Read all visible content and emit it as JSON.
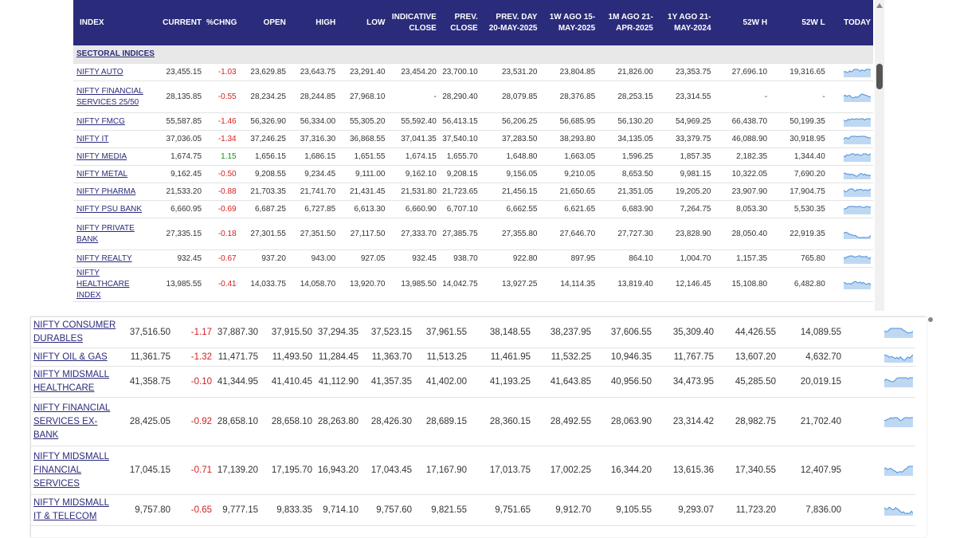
{
  "top": {
    "headers": [
      "INDEX",
      "CURRENT",
      "%CHNG",
      "OPEN",
      "HIGH",
      "LOW",
      "INDICATIVE CLOSE",
      "PREV. CLOSE",
      "PREV. DAY 20-MAY-2025",
      "1W AGO 15-MAY-2025",
      "1M AGO 21-APR-2025",
      "1Y AGO 21-MAY-2024",
      "52W H",
      "52W L",
      "TODAY"
    ],
    "section": "SECTORAL INDICES",
    "rows": [
      {
        "name": "NIFTY AUTO",
        "v": [
          "23,455.15",
          "-1.03",
          "23,629.85",
          "23,643.75",
          "23,291.40",
          "23,454.20",
          "23,700.10",
          "23,531.20",
          "23,804.85",
          "21,826.00",
          "23,353.75",
          "27,696.10",
          "19,316.65"
        ],
        "dir": "neg"
      },
      {
        "name": "NIFTY FINANCIAL SERVICES 25/50",
        "v": [
          "28,135.85",
          "-0.55",
          "28,234.25",
          "28,244.85",
          "27,968.10",
          "-",
          "28,290.40",
          "28,079.85",
          "28,376.85",
          "28,253.15",
          "23,314.55",
          "-",
          "-"
        ],
        "dir": "neg"
      },
      {
        "name": "NIFTY FMCG",
        "v": [
          "55,587.85",
          "-1.46",
          "56,326.90",
          "56,334.00",
          "55,305.20",
          "55,592.40",
          "56,413.15",
          "56,206.25",
          "56,685.95",
          "56,130.20",
          "54,969.25",
          "66,438.70",
          "50,199.35"
        ],
        "dir": "neg"
      },
      {
        "name": "NIFTY IT",
        "v": [
          "37,036.05",
          "-1.34",
          "37,246.25",
          "37,316.30",
          "36,868.55",
          "37,041.35",
          "37,540.10",
          "37,283.50",
          "38,293.80",
          "34,135.05",
          "33,379.75",
          "46,088.90",
          "30,918.95"
        ],
        "dir": "neg"
      },
      {
        "name": "NIFTY MEDIA",
        "v": [
          "1,674.75",
          "1.15",
          "1,656.15",
          "1,686.15",
          "1,651.55",
          "1,674.15",
          "1,655.70",
          "1,648.80",
          "1,663.05",
          "1,596.25",
          "1,857.35",
          "2,182.35",
          "1,344.40"
        ],
        "dir": "pos"
      },
      {
        "name": "NIFTY METAL",
        "v": [
          "9,162.45",
          "-0.50",
          "9,208.55",
          "9,234.45",
          "9,111.00",
          "9,162.10",
          "9,208.15",
          "9,156.05",
          "9,210.05",
          "8,653.50",
          "9,981.15",
          "10,322.05",
          "7,690.20"
        ],
        "dir": "neg"
      },
      {
        "name": "NIFTY PHARMA",
        "v": [
          "21,533.20",
          "-0.88",
          "21,703.35",
          "21,741.70",
          "21,431.45",
          "21,531.80",
          "21,723.65",
          "21,456.15",
          "21,650.65",
          "21,351.05",
          "19,205.20",
          "23,907.90",
          "17,904.75"
        ],
        "dir": "neg"
      },
      {
        "name": "NIFTY PSU BANK",
        "v": [
          "6,660.95",
          "-0.69",
          "6,687.25",
          "6,727.85",
          "6,613.30",
          "6,660.90",
          "6,707.10",
          "6,662.55",
          "6,621.65",
          "6,683.90",
          "7,264.75",
          "8,053.30",
          "5,530.35"
        ],
        "dir": "neg"
      },
      {
        "name": "NIFTY PRIVATE BANK",
        "v": [
          "27,335.15",
          "-0.18",
          "27,301.55",
          "27,351.50",
          "27,117.50",
          "27,333.70",
          "27,385.75",
          "27,355.80",
          "27,646.70",
          "27,727.30",
          "23,828.90",
          "28,050.40",
          "22,919.35"
        ],
        "dir": "neg"
      },
      {
        "name": "NIFTY REALTY",
        "v": [
          "932.45",
          "-0.67",
          "937.20",
          "943.00",
          "927.05",
          "932.45",
          "938.70",
          "922.80",
          "897.95",
          "864.10",
          "1,004.70",
          "1,157.35",
          "765.80"
        ],
        "dir": "neg"
      },
      {
        "name": "NIFTY HEALTHCARE INDEX",
        "v": [
          "13,985.55",
          "-0.41",
          "14,033.75",
          "14,058.70",
          "13,920.70",
          "13,985.50",
          "14,042.75",
          "13,927.25",
          "14,114.35",
          "13,819.40",
          "12,146.45",
          "15,108.80",
          "6,482.80"
        ],
        "dir": "neg"
      }
    ]
  },
  "bottom": {
    "rows": [
      {
        "name": "NIFTY CONSUMER DURABLES",
        "v": [
          "37,516.50",
          "-1.17",
          "37,887.30",
          "37,915.50",
          "37,294.35",
          "37,523.15",
          "37,961.55",
          "38,148.55",
          "38,237.95",
          "37,606.55",
          "35,309.40",
          "44,426.55",
          "14,089.55"
        ],
        "dir": "neg"
      },
      {
        "name": "NIFTY OIL & GAS",
        "v": [
          "11,361.75",
          "-1.32",
          "11,471.75",
          "11,493.50",
          "11,284.45",
          "11,363.70",
          "11,513.25",
          "11,461.95",
          "11,532.25",
          "10,946.35",
          "11,767.75",
          "13,607.20",
          "4,632.70"
        ],
        "dir": "neg"
      },
      {
        "name": "NIFTY MIDSMALL HEALTHCARE",
        "v": [
          "41,358.75",
          "-0.10",
          "41,344.95",
          "41,410.45",
          "41,112.90",
          "41,357.35",
          "41,402.00",
          "41,193.25",
          "41,643.85",
          "40,956.50",
          "34,473.95",
          "45,285.50",
          "20,019.15"
        ],
        "dir": "neg"
      },
      {
        "name": "NIFTY FINANCIAL SERVICES EX-BANK",
        "v": [
          "28,425.05",
          "-0.92",
          "28,658.10",
          "28,658.10",
          "28,263.80",
          "28,426.30",
          "28,689.15",
          "28,360.15",
          "28,492.55",
          "28,063.90",
          "23,314.42",
          "28,982.75",
          "21,702.40"
        ],
        "dir": "neg"
      },
      {
        "name": "NIFTY MIDSMALL FINANCIAL SERVICES",
        "v": [
          "17,045.15",
          "-0.71",
          "17,139.20",
          "17,195.70",
          "16,943.20",
          "17,043.45",
          "17,167.90",
          "17,013.75",
          "17,002.25",
          "16,344.20",
          "13,615.36",
          "17,340.55",
          "12,407.95"
        ],
        "dir": "neg"
      },
      {
        "name": "NIFTY MIDSMALL IT & TELECOM",
        "v": [
          "9,757.80",
          "-0.65",
          "9,777.15",
          "9,833.35",
          "9,714.10",
          "9,757.60",
          "9,821.55",
          "9,751.65",
          "9,912.70",
          "9,105.55",
          "9,293.07",
          "11,723.20",
          "7,836.00"
        ],
        "dir": "neg"
      }
    ]
  },
  "colors": {
    "header_bg": "#2b2b7b",
    "negative": "#d32020",
    "positive": "#1a8a1a",
    "sparkline": "#4a90d9"
  }
}
